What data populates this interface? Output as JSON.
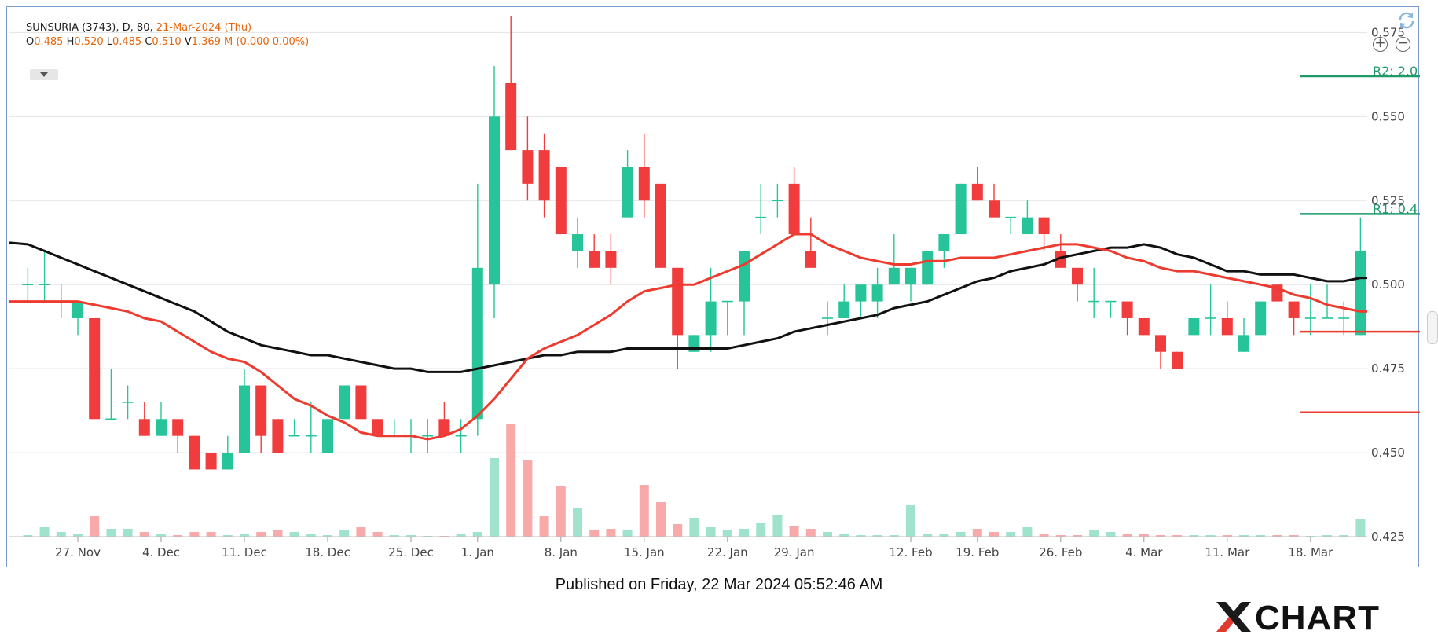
{
  "header": {
    "line1_prefix": "SUNSURIA (3743), D, 80,",
    "line1_date": "21-Mar-2024 (Thu)",
    "o_label": "O",
    "o_value": "0.485",
    "h_label": "H",
    "h_value": "0.520",
    "l_label": "L",
    "l_value": "0.485",
    "c_label": "C",
    "c_value": "0.510",
    "v_label": "V",
    "v_value": "1.369 M (0.000 0.00%)"
  },
  "published": "Published on Friday, 22 Mar 2024 05:52:46 AM",
  "brand": "CHART",
  "colors": {
    "up": "#26c498",
    "down": "#f03c3c",
    "ma_black": "#111111",
    "ma_red": "#ee3b2f",
    "pivot_r": "#1e9a6a",
    "pivot_s": "#ee3b2f"
  },
  "chart_data": {
    "type": "candlestick",
    "ylim": [
      0.425,
      0.58
    ],
    "y_ticks": [
      "0.425",
      "0.450",
      "0.475",
      "0.500",
      "0.525",
      "0.550",
      "0.575"
    ],
    "x_ticks": [
      {
        "label": "27. Nov",
        "i": 3
      },
      {
        "label": "4. Dec",
        "i": 8
      },
      {
        "label": "11. Dec",
        "i": 13
      },
      {
        "label": "18. Dec",
        "i": 18
      },
      {
        "label": "25. Dec",
        "i": 23
      },
      {
        "label": "1. Jan",
        "i": 27
      },
      {
        "label": "8. Jan",
        "i": 32
      },
      {
        "label": "15. Jan",
        "i": 37
      },
      {
        "label": "22. Jan",
        "i": 42
      },
      {
        "label": "29. Jan",
        "i": 46
      },
      {
        "label": "12. Feb",
        "i": 53
      },
      {
        "label": "19. Feb",
        "i": 57
      },
      {
        "label": "26. Feb",
        "i": 62
      },
      {
        "label": "4. Mar",
        "i": 67
      },
      {
        "label": "11. Mar",
        "i": 72
      },
      {
        "label": "18. Mar",
        "i": 77
      }
    ],
    "candles": [
      [
        0.5,
        0.505,
        0.495,
        0.5
      ],
      [
        0.5,
        0.51,
        0.495,
        0.5
      ],
      [
        0.495,
        0.5,
        0.49,
        0.495
      ],
      [
        0.49,
        0.495,
        0.485,
        0.495
      ],
      [
        0.49,
        0.49,
        0.46,
        0.46
      ],
      [
        0.46,
        0.475,
        0.46,
        0.46
      ],
      [
        0.465,
        0.47,
        0.46,
        0.465
      ],
      [
        0.46,
        0.465,
        0.455,
        0.455
      ],
      [
        0.455,
        0.465,
        0.455,
        0.46
      ],
      [
        0.46,
        0.46,
        0.45,
        0.455
      ],
      [
        0.455,
        0.455,
        0.445,
        0.445
      ],
      [
        0.45,
        0.45,
        0.445,
        0.445
      ],
      [
        0.445,
        0.455,
        0.445,
        0.45
      ],
      [
        0.45,
        0.475,
        0.45,
        0.47
      ],
      [
        0.47,
        0.47,
        0.45,
        0.455
      ],
      [
        0.46,
        0.46,
        0.45,
        0.45
      ],
      [
        0.455,
        0.46,
        0.455,
        0.455
      ],
      [
        0.455,
        0.465,
        0.45,
        0.455
      ],
      [
        0.45,
        0.46,
        0.45,
        0.46
      ],
      [
        0.46,
        0.47,
        0.46,
        0.47
      ],
      [
        0.47,
        0.47,
        0.46,
        0.46
      ],
      [
        0.46,
        0.46,
        0.455,
        0.455
      ],
      [
        0.455,
        0.46,
        0.455,
        0.455
      ],
      [
        0.455,
        0.46,
        0.45,
        0.455
      ],
      [
        0.455,
        0.46,
        0.45,
        0.455
      ],
      [
        0.46,
        0.465,
        0.455,
        0.455
      ],
      [
        0.455,
        0.46,
        0.45,
        0.455
      ],
      [
        0.46,
        0.53,
        0.455,
        0.505
      ],
      [
        0.5,
        0.565,
        0.49,
        0.55
      ],
      [
        0.56,
        0.58,
        0.54,
        0.54
      ],
      [
        0.54,
        0.55,
        0.525,
        0.53
      ],
      [
        0.54,
        0.545,
        0.52,
        0.525
      ],
      [
        0.535,
        0.535,
        0.515,
        0.515
      ],
      [
        0.51,
        0.52,
        0.505,
        0.515
      ],
      [
        0.51,
        0.515,
        0.505,
        0.505
      ],
      [
        0.51,
        0.515,
        0.5,
        0.505
      ],
      [
        0.52,
        0.54,
        0.52,
        0.535
      ],
      [
        0.535,
        0.545,
        0.52,
        0.525
      ],
      [
        0.53,
        0.53,
        0.505,
        0.505
      ],
      [
        0.505,
        0.505,
        0.475,
        0.485
      ],
      [
        0.48,
        0.485,
        0.48,
        0.485
      ],
      [
        0.485,
        0.505,
        0.48,
        0.495
      ],
      [
        0.495,
        0.495,
        0.485,
        0.495
      ],
      [
        0.495,
        0.51,
        0.485,
        0.51
      ],
      [
        0.52,
        0.53,
        0.515,
        0.52
      ],
      [
        0.525,
        0.53,
        0.52,
        0.525
      ],
      [
        0.53,
        0.535,
        0.515,
        0.515
      ],
      [
        0.51,
        0.52,
        0.505,
        0.505
      ],
      [
        0.49,
        0.495,
        0.485,
        0.49
      ],
      [
        0.49,
        0.5,
        0.49,
        0.495
      ],
      [
        0.495,
        0.5,
        0.49,
        0.5
      ],
      [
        0.495,
        0.505,
        0.49,
        0.5
      ],
      [
        0.5,
        0.515,
        0.5,
        0.505
      ],
      [
        0.5,
        0.505,
        0.495,
        0.505
      ],
      [
        0.5,
        0.51,
        0.5,
        0.51
      ],
      [
        0.51,
        0.515,
        0.505,
        0.515
      ],
      [
        0.515,
        0.53,
        0.515,
        0.53
      ],
      [
        0.53,
        0.535,
        0.525,
        0.525
      ],
      [
        0.525,
        0.53,
        0.52,
        0.52
      ],
      [
        0.52,
        0.52,
        0.515,
        0.52
      ],
      [
        0.515,
        0.525,
        0.515,
        0.52
      ],
      [
        0.52,
        0.52,
        0.51,
        0.515
      ],
      [
        0.51,
        0.515,
        0.505,
        0.505
      ],
      [
        0.505,
        0.505,
        0.495,
        0.5
      ],
      [
        0.495,
        0.505,
        0.49,
        0.495
      ],
      [
        0.495,
        0.495,
        0.49,
        0.495
      ],
      [
        0.495,
        0.495,
        0.485,
        0.49
      ],
      [
        0.49,
        0.49,
        0.485,
        0.485
      ],
      [
        0.485,
        0.485,
        0.475,
        0.48
      ],
      [
        0.48,
        0.48,
        0.475,
        0.475
      ],
      [
        0.485,
        0.49,
        0.485,
        0.49
      ],
      [
        0.49,
        0.5,
        0.485,
        0.49
      ],
      [
        0.49,
        0.495,
        0.485,
        0.485
      ],
      [
        0.48,
        0.49,
        0.48,
        0.485
      ],
      [
        0.485,
        0.495,
        0.485,
        0.495
      ],
      [
        0.5,
        0.5,
        0.495,
        0.495
      ],
      [
        0.495,
        0.495,
        0.485,
        0.49
      ],
      [
        0.49,
        0.5,
        0.485,
        0.49
      ],
      [
        0.49,
        0.5,
        0.49,
        0.49
      ],
      [
        0.49,
        0.495,
        0.485,
        0.49
      ],
      [
        0.485,
        0.52,
        0.485,
        0.51
      ]
    ],
    "volume_rel": [
      0.01,
      0.06,
      0.03,
      0.02,
      0.13,
      0.05,
      0.05,
      0.03,
      0.02,
      0.01,
      0.03,
      0.03,
      0.01,
      0.02,
      0.03,
      0.04,
      0.03,
      0.02,
      0.01,
      0.04,
      0.06,
      0.03,
      0.01,
      0.01,
      0.0,
      0.0,
      0.02,
      0.03,
      0.5,
      0.72,
      0.49,
      0.13,
      0.32,
      0.18,
      0.04,
      0.05,
      0.04,
      0.33,
      0.22,
      0.08,
      0.12,
      0.06,
      0.04,
      0.05,
      0.09,
      0.14,
      0.07,
      0.05,
      0.03,
      0.02,
      0.01,
      0.01,
      0.01,
      0.2,
      0.02,
      0.02,
      0.03,
      0.05,
      0.03,
      0.03,
      0.06,
      0.02,
      0.01,
      0.01,
      0.04,
      0.03,
      0.02,
      0.02,
      0.01,
      0.01,
      0.01,
      0.01,
      0.01,
      0.01,
      0.01,
      0.01,
      0.01,
      0.0,
      0.01,
      0.01,
      0.11
    ],
    "ma_black": [
      0.512,
      0.51,
      0.508,
      0.506,
      0.504,
      0.502,
      0.5,
      0.498,
      0.496,
      0.494,
      0.492,
      0.489,
      0.486,
      0.484,
      0.482,
      0.481,
      0.48,
      0.479,
      0.479,
      0.478,
      0.477,
      0.476,
      0.475,
      0.475,
      0.474,
      0.474,
      0.474,
      0.475,
      0.476,
      0.477,
      0.478,
      0.479,
      0.479,
      0.48,
      0.48,
      0.48,
      0.481,
      0.481,
      0.481,
      0.481,
      0.481,
      0.481,
      0.481,
      0.482,
      0.483,
      0.484,
      0.486,
      0.487,
      0.488,
      0.489,
      0.49,
      0.491,
      0.493,
      0.494,
      0.495,
      0.497,
      0.499,
      0.501,
      0.502,
      0.504,
      0.505,
      0.506,
      0.508,
      0.509,
      0.51,
      0.511,
      0.511,
      0.512,
      0.511,
      0.509,
      0.508,
      0.506,
      0.504,
      0.504,
      0.503,
      0.503,
      0.503,
      0.502,
      0.501,
      0.501,
      0.502
    ],
    "ma_red": [
      0.495,
      0.495,
      0.495,
      0.495,
      0.494,
      0.493,
      0.492,
      0.49,
      0.489,
      0.486,
      0.483,
      0.48,
      0.478,
      0.477,
      0.474,
      0.47,
      0.466,
      0.464,
      0.461,
      0.459,
      0.456,
      0.455,
      0.455,
      0.455,
      0.454,
      0.455,
      0.457,
      0.461,
      0.466,
      0.472,
      0.478,
      0.481,
      0.483,
      0.485,
      0.488,
      0.491,
      0.495,
      0.498,
      0.499,
      0.5,
      0.5,
      0.502,
      0.504,
      0.506,
      0.509,
      0.512,
      0.515,
      0.515,
      0.512,
      0.51,
      0.508,
      0.507,
      0.506,
      0.506,
      0.507,
      0.507,
      0.508,
      0.508,
      0.508,
      0.509,
      0.51,
      0.511,
      0.512,
      0.512,
      0.511,
      0.51,
      0.508,
      0.507,
      0.505,
      0.504,
      0.504,
      0.503,
      0.502,
      0.501,
      0.5,
      0.499,
      0.497,
      0.496,
      0.494,
      0.493,
      0.492
    ],
    "pivots": [
      {
        "label": "R2: 2.0",
        "value": 0.562,
        "kind": "resistance"
      },
      {
        "label": "R1: 0.4",
        "value": 0.521,
        "kind": "resistance"
      },
      {
        "label": "",
        "value": 0.486,
        "kind": "support"
      },
      {
        "label": "",
        "value": 0.462,
        "kind": "support"
      }
    ]
  }
}
